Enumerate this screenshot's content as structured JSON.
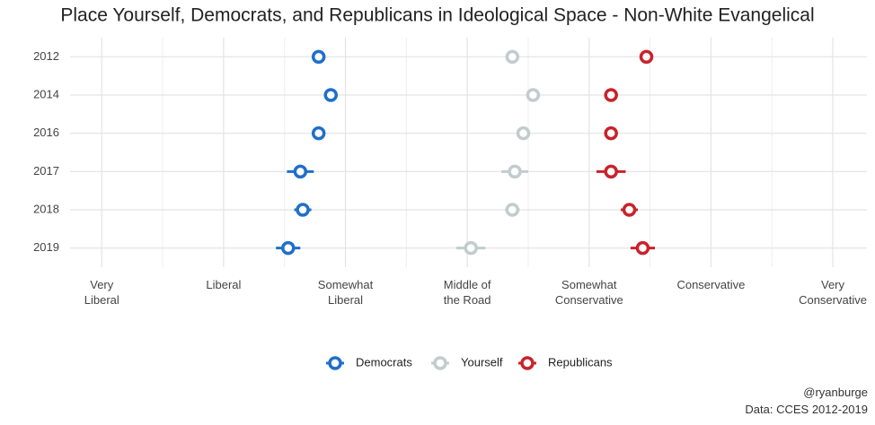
{
  "chart_data": {
    "type": "dot",
    "title": "Place Yourself, Democrats, and Republicans in Ideological Space - Non-White Evangelical",
    "categories": [
      "2012",
      "2014",
      "2016",
      "2017",
      "2018",
      "2019"
    ],
    "series": [
      {
        "name": "Democrats",
        "color": "#1f6fc8",
        "values": [
          2.78,
          2.88,
          2.78,
          2.63,
          2.65,
          2.53
        ],
        "errors": [
          0.05,
          0.05,
          0.05,
          0.11,
          0.07,
          0.1
        ]
      },
      {
        "name": "Yourself",
        "color": "#c2cccc",
        "values": [
          4.37,
          4.54,
          4.46,
          4.39,
          4.37,
          4.03
        ],
        "errors": [
          0.05,
          0.05,
          0.05,
          0.11,
          0.06,
          0.12
        ]
      },
      {
        "name": "Republicans",
        "color": "#c8232b",
        "values": [
          5.47,
          5.18,
          5.18,
          5.18,
          5.33,
          5.44
        ],
        "errors": [
          0.05,
          0.05,
          0.05,
          0.12,
          0.07,
          0.1
        ]
      }
    ],
    "xlim": [
      0.74,
      7.28
    ],
    "xticks": [
      {
        "value": 1,
        "label": "Very\nLiberal"
      },
      {
        "value": 2,
        "label": "Liberal"
      },
      {
        "value": 3,
        "label": "Somewhat\nLiberal"
      },
      {
        "value": 4,
        "label": "Middle of\nthe Road"
      },
      {
        "value": 5,
        "label": "Somewhat\nConservative"
      },
      {
        "value": 6,
        "label": "Conservative"
      },
      {
        "value": 7,
        "label": "Very\nConservative"
      }
    ],
    "grid": true,
    "legend": "bottom",
    "caption": [
      "@ryanburge",
      "Data: CCES 2012-2019"
    ]
  }
}
